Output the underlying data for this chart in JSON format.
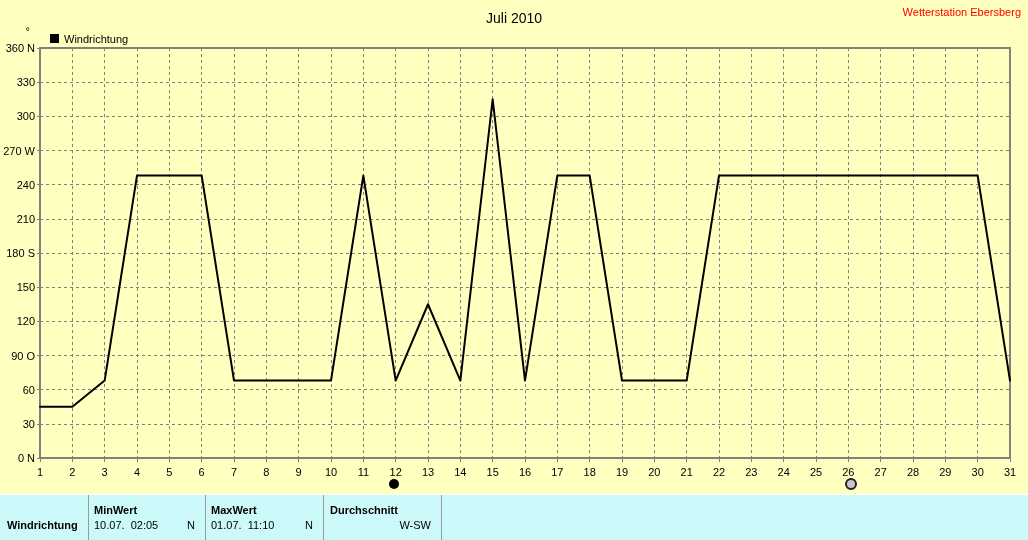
{
  "chart_data": {
    "type": "line",
    "title": "Juli 2010",
    "ylabel": "°",
    "annotations": [
      "Wetterstation Ebersberg",
      "Windrichtung",
      "MinWert",
      "10.07.  02:05",
      "N",
      "MaxWert",
      "01.07.  11:10",
      "N",
      "Durchschnitt",
      "W-SW"
    ],
    "x": [
      1,
      2,
      3,
      4,
      5,
      6,
      7,
      8,
      9,
      10,
      11,
      12,
      13,
      14,
      15,
      16,
      17,
      18,
      19,
      20,
      21,
      22,
      23,
      24,
      25,
      26,
      27,
      28,
      29,
      30,
      31
    ],
    "series": [
      {
        "name": "Windrichtung",
        "color": "#000000",
        "values": [
          45,
          45,
          68,
          248,
          248,
          248,
          68,
          68,
          68,
          68,
          248,
          68,
          135,
          68,
          315,
          68,
          248,
          248,
          68,
          68,
          68,
          248,
          248,
          248,
          248,
          248,
          248,
          248,
          248,
          248,
          68
        ]
      }
    ],
    "xlim": [
      1,
      31
    ],
    "xticks": [
      1,
      2,
      3,
      4,
      5,
      6,
      7,
      8,
      9,
      10,
      11,
      12,
      13,
      14,
      15,
      16,
      17,
      18,
      19,
      20,
      21,
      22,
      23,
      24,
      25,
      26,
      27,
      28,
      29,
      30,
      31
    ],
    "ylim": [
      0,
      360
    ],
    "yticks": [
      {
        "value": 0,
        "label": "0 N"
      },
      30,
      60,
      {
        "value": 90,
        "label": "90 O"
      },
      120,
      150,
      {
        "value": 180,
        "label": "180 S"
      },
      210,
      240,
      {
        "value": 270,
        "label": "270 W"
      },
      300,
      330,
      {
        "value": 360,
        "label": "360 N"
      }
    ],
    "grid": true,
    "legend": "top left",
    "marker": "none",
    "line_style": "solid"
  }
}
